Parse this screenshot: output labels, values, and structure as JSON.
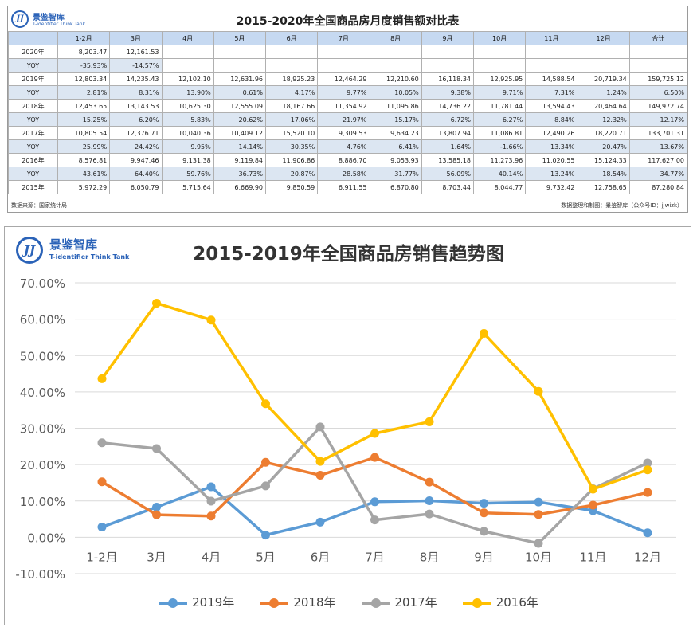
{
  "table_panel": {
    "logo": {
      "mark": "JJ",
      "cn": "景鉴智库",
      "en": "T-identifier Think Tank"
    },
    "title": "2015-2020年全国商品房月度销售额对比表",
    "headers": [
      "",
      "1-2月",
      "3月",
      "4月",
      "5月",
      "6月",
      "7月",
      "8月",
      "9月",
      "10月",
      "11月",
      "12月",
      "合计"
    ],
    "rows": [
      {
        "type": "data",
        "cells": [
          "2020年",
          "8,203.47",
          "12,161.53",
          "",
          "",
          "",
          "",
          "",
          "",
          "",
          "",
          "",
          ""
        ]
      },
      {
        "type": "yoy",
        "cells": [
          "YOY",
          "-35.93%",
          "-14.57%",
          "",
          "",
          "",
          "",
          "",
          "",
          "",
          "",
          "",
          ""
        ]
      },
      {
        "type": "data",
        "cells": [
          "2019年",
          "12,803.34",
          "14,235.43",
          "12,102.10",
          "12,631.96",
          "18,925.23",
          "12,464.29",
          "12,210.60",
          "16,118.34",
          "12,925.95",
          "14,588.54",
          "20,719.34",
          "159,725.12"
        ]
      },
      {
        "type": "yoy",
        "cells": [
          "YOY",
          "2.81%",
          "8.31%",
          "13.90%",
          "0.61%",
          "4.17%",
          "9.77%",
          "10.05%",
          "9.38%",
          "9.71%",
          "7.31%",
          "1.24%",
          "6.50%"
        ]
      },
      {
        "type": "data",
        "cells": [
          "2018年",
          "12,453.65",
          "13,143.53",
          "10,625.30",
          "12,555.09",
          "18,167.66",
          "11,354.92",
          "11,095.86",
          "14,736.22",
          "11,781.44",
          "13,594.43",
          "20,464.64",
          "149,972.74"
        ]
      },
      {
        "type": "yoy",
        "cells": [
          "YOY",
          "15.25%",
          "6.20%",
          "5.83%",
          "20.62%",
          "17.06%",
          "21.97%",
          "15.17%",
          "6.72%",
          "6.27%",
          "8.84%",
          "12.32%",
          "12.17%"
        ]
      },
      {
        "type": "data",
        "cells": [
          "2017年",
          "10,805.54",
          "12,376.71",
          "10,040.36",
          "10,409.12",
          "15,520.10",
          "9,309.53",
          "9,634.23",
          "13,807.94",
          "11,086.81",
          "12,490.26",
          "18,220.71",
          "133,701.31"
        ]
      },
      {
        "type": "yoy",
        "cells": [
          "YOY",
          "25.99%",
          "24.42%",
          "9.95%",
          "14.14%",
          "30.35%",
          "4.76%",
          "6.41%",
          "1.64%",
          "-1.66%",
          "13.34%",
          "20.47%",
          "13.67%"
        ]
      },
      {
        "type": "data",
        "cells": [
          "2016年",
          "8,576.81",
          "9,947.46",
          "9,131.38",
          "9,119.84",
          "11,906.86",
          "8,886.70",
          "9,053.93",
          "13,585.18",
          "11,273.96",
          "11,020.55",
          "15,124.33",
          "117,627.00"
        ]
      },
      {
        "type": "yoy",
        "cells": [
          "YOY",
          "43.61%",
          "64.40%",
          "59.76%",
          "36.73%",
          "20.87%",
          "28.58%",
          "31.77%",
          "56.09%",
          "40.14%",
          "13.24%",
          "18.54%",
          "34.77%"
        ]
      },
      {
        "type": "data",
        "cells": [
          "2015年",
          "5,972.29",
          "6,050.79",
          "5,715.64",
          "6,669.90",
          "9,850.59",
          "6,911.55",
          "6,870.80",
          "8,703.44",
          "8,044.77",
          "9,732.42",
          "12,758.65",
          "87,280.84"
        ]
      }
    ],
    "source_left": "数据来源：国家统计局",
    "source_right": "数据整理和制图：景鉴智库（公众号ID：jjwizk）"
  },
  "chart_panel": {
    "logo": {
      "mark": "JJ",
      "cn": "景鉴智库",
      "en": "T-identifier Think Tank"
    }
  },
  "chart_data": {
    "type": "line",
    "title": "2015-2019年全国商品房销售趋势图",
    "xlabel": "",
    "ylabel": "",
    "categories": [
      "1-2月",
      "3月",
      "4月",
      "5月",
      "6月",
      "7月",
      "8月",
      "9月",
      "10月",
      "11月",
      "12月"
    ],
    "ylim": [
      -0.1,
      0.7
    ],
    "yticks": [
      -0.1,
      0.0,
      0.1,
      0.2,
      0.3,
      0.4,
      0.5,
      0.6,
      0.7
    ],
    "ytick_labels": [
      "-10.00%",
      "0.00%",
      "10.00%",
      "20.00%",
      "30.00%",
      "40.00%",
      "50.00%",
      "60.00%",
      "70.00%"
    ],
    "grid": true,
    "legend_position": "bottom",
    "series": [
      {
        "name": "2019年",
        "color": "#5b9bd5",
        "values": [
          0.0281,
          0.0831,
          0.139,
          0.0061,
          0.0417,
          0.0977,
          0.1005,
          0.0938,
          0.0971,
          0.0731,
          0.0124
        ]
      },
      {
        "name": "2018年",
        "color": "#ed7d31",
        "values": [
          0.1525,
          0.062,
          0.0583,
          0.2062,
          0.1706,
          0.2197,
          0.1517,
          0.0672,
          0.0627,
          0.0884,
          0.1232
        ]
      },
      {
        "name": "2017年",
        "color": "#a5a5a5",
        "values": [
          0.2599,
          0.2442,
          0.0995,
          0.1414,
          0.3035,
          0.0476,
          0.0641,
          0.0164,
          -0.0166,
          0.1334,
          0.2047
        ]
      },
      {
        "name": "2016年",
        "color": "#ffc000",
        "values": [
          0.4361,
          0.644,
          0.5976,
          0.3673,
          0.2087,
          0.2858,
          0.3177,
          0.5609,
          0.4014,
          0.1324,
          0.1854
        ]
      }
    ]
  }
}
